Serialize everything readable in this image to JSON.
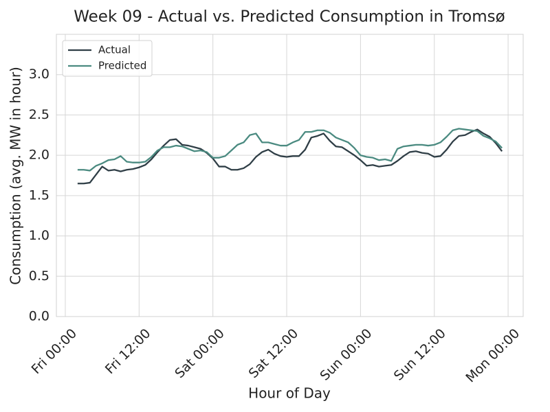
{
  "chart_data": {
    "type": "line",
    "title": "Week 09 - Actual vs. Predicted Consumption in Tromsø",
    "x_label": "Hour of Day",
    "y_label": "Consumption (avg. MW in hour)",
    "x": [
      2,
      3,
      4,
      5,
      6,
      7,
      8,
      9,
      10,
      11,
      12,
      13,
      14,
      15,
      16,
      17,
      18,
      19,
      20,
      21,
      22,
      23,
      24,
      25,
      26,
      27,
      28,
      29,
      30,
      31,
      32,
      33,
      34,
      35,
      36,
      37,
      38,
      39,
      40,
      41,
      42,
      43,
      44,
      45,
      46,
      47,
      48,
      49,
      50,
      51,
      52,
      53,
      54,
      55,
      56,
      57,
      58,
      59,
      60,
      61,
      62,
      63,
      64,
      65,
      66,
      67,
      68,
      69,
      70,
      71
    ],
    "series": [
      {
        "name": "Actual",
        "color": "#2f3e46",
        "values": [
          1.65,
          1.65,
          1.66,
          1.76,
          1.86,
          1.81,
          1.82,
          1.8,
          1.82,
          1.83,
          1.85,
          1.88,
          1.95,
          2.04,
          2.12,
          2.19,
          2.2,
          2.13,
          2.12,
          2.1,
          2.08,
          2.03,
          1.96,
          1.86,
          1.86,
          1.82,
          1.82,
          1.84,
          1.89,
          1.98,
          2.04,
          2.07,
          2.02,
          1.99,
          1.98,
          1.99,
          1.99,
          2.07,
          2.22,
          2.24,
          2.27,
          2.18,
          2.11,
          2.1,
          2.05,
          2.0,
          1.94,
          1.87,
          1.88,
          1.86,
          1.87,
          1.88,
          1.93,
          1.99,
          2.04,
          2.05,
          2.03,
          2.02,
          1.98,
          1.99,
          2.07,
          2.17,
          2.24,
          2.25,
          2.29,
          2.32,
          2.27,
          2.23,
          2.15,
          2.05
        ]
      },
      {
        "name": "Predicted",
        "color": "#4a8a80",
        "values": [
          1.82,
          1.82,
          1.81,
          1.87,
          1.9,
          1.94,
          1.95,
          1.99,
          1.92,
          1.91,
          1.91,
          1.92,
          1.98,
          2.06,
          2.1,
          2.1,
          2.12,
          2.11,
          2.08,
          2.05,
          2.06,
          2.04,
          1.97,
          1.97,
          1.99,
          2.06,
          2.13,
          2.16,
          2.25,
          2.27,
          2.16,
          2.16,
          2.14,
          2.12,
          2.12,
          2.16,
          2.19,
          2.29,
          2.29,
          2.31,
          2.31,
          2.28,
          2.22,
          2.19,
          2.16,
          2.09,
          2.0,
          1.98,
          1.97,
          1.94,
          1.95,
          1.93,
          2.08,
          2.11,
          2.12,
          2.13,
          2.13,
          2.12,
          2.13,
          2.16,
          2.23,
          2.31,
          2.33,
          2.32,
          2.31,
          2.3,
          2.24,
          2.21,
          2.17,
          2.09
        ]
      }
    ],
    "xlim": [
      -1.45,
      74.45
    ],
    "xticks": [
      {
        "value": 0,
        "label": "Fri 00:00"
      },
      {
        "value": 12,
        "label": "Fri 12:00"
      },
      {
        "value": 24,
        "label": "Sat 00:00"
      },
      {
        "value": 36,
        "label": "Sat 12:00"
      },
      {
        "value": 48,
        "label": "Sun 00:00"
      },
      {
        "value": 60,
        "label": "Sun 12:00"
      },
      {
        "value": 72,
        "label": "Mon 00:00"
      }
    ],
    "ylim": [
      0,
      3.5
    ],
    "yticks": [
      {
        "value": 0,
        "label": "0.0"
      },
      {
        "value": 0.5,
        "label": "0.5"
      },
      {
        "value": 1,
        "label": "1.0"
      },
      {
        "value": 1.5,
        "label": "1.5"
      },
      {
        "value": 2,
        "label": "2.0"
      },
      {
        "value": 2.5,
        "label": "2.5"
      },
      {
        "value": 3,
        "label": "3.0"
      }
    ],
    "grid": true,
    "legend": "upper-left"
  }
}
